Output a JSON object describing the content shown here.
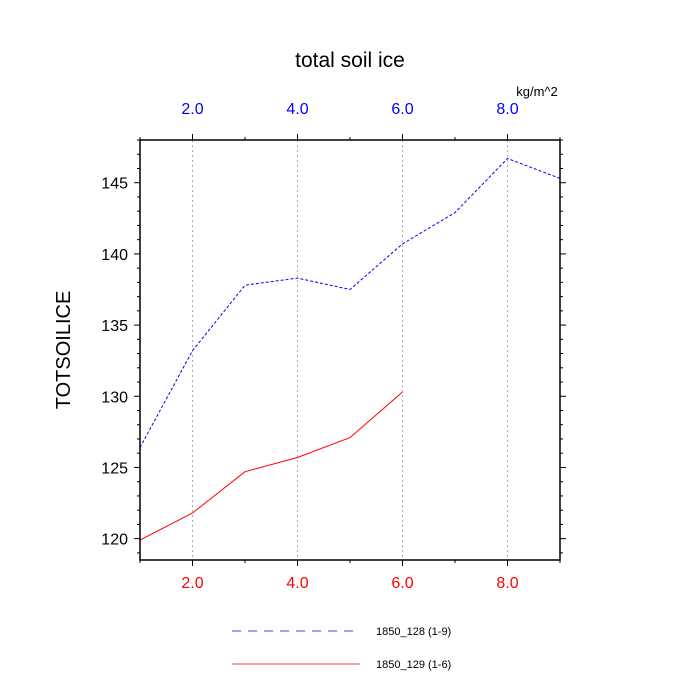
{
  "chart_data": {
    "type": "line",
    "title": "total soil ice",
    "ylabel": "TOTSOILICE",
    "top_axis_units": "kg/m^2",
    "xlim": [
      1,
      9
    ],
    "ylim": [
      118.5,
      148
    ],
    "x_ticks_bottom": [
      "2.0",
      "4.0",
      "6.0",
      "8.0"
    ],
    "x_ticks_top": [
      "2.0",
      "4.0",
      "6.0",
      "8.0"
    ],
    "y_ticks": [
      "120",
      "125",
      "130",
      "135",
      "140",
      "145"
    ],
    "grid": "vertical dotted lines at major x ticks",
    "legend_position": "bottom-center",
    "series": [
      {
        "name": "1850_128 (1-9)",
        "color": "#0000ff",
        "style": "dashed",
        "axis": "top",
        "x": [
          1,
          2,
          3,
          4,
          5,
          6,
          7,
          8,
          9
        ],
        "y": [
          126.4,
          133.2,
          137.8,
          138.3,
          137.5,
          140.7,
          142.9,
          146.7,
          145.3
        ]
      },
      {
        "name": "1850_129 (1-6)",
        "color": "#ff0000",
        "style": "solid",
        "axis": "bottom",
        "x": [
          1,
          2,
          3,
          4,
          5,
          6
        ],
        "y": [
          119.9,
          121.8,
          124.7,
          125.7,
          127.1,
          130.3
        ]
      }
    ]
  }
}
